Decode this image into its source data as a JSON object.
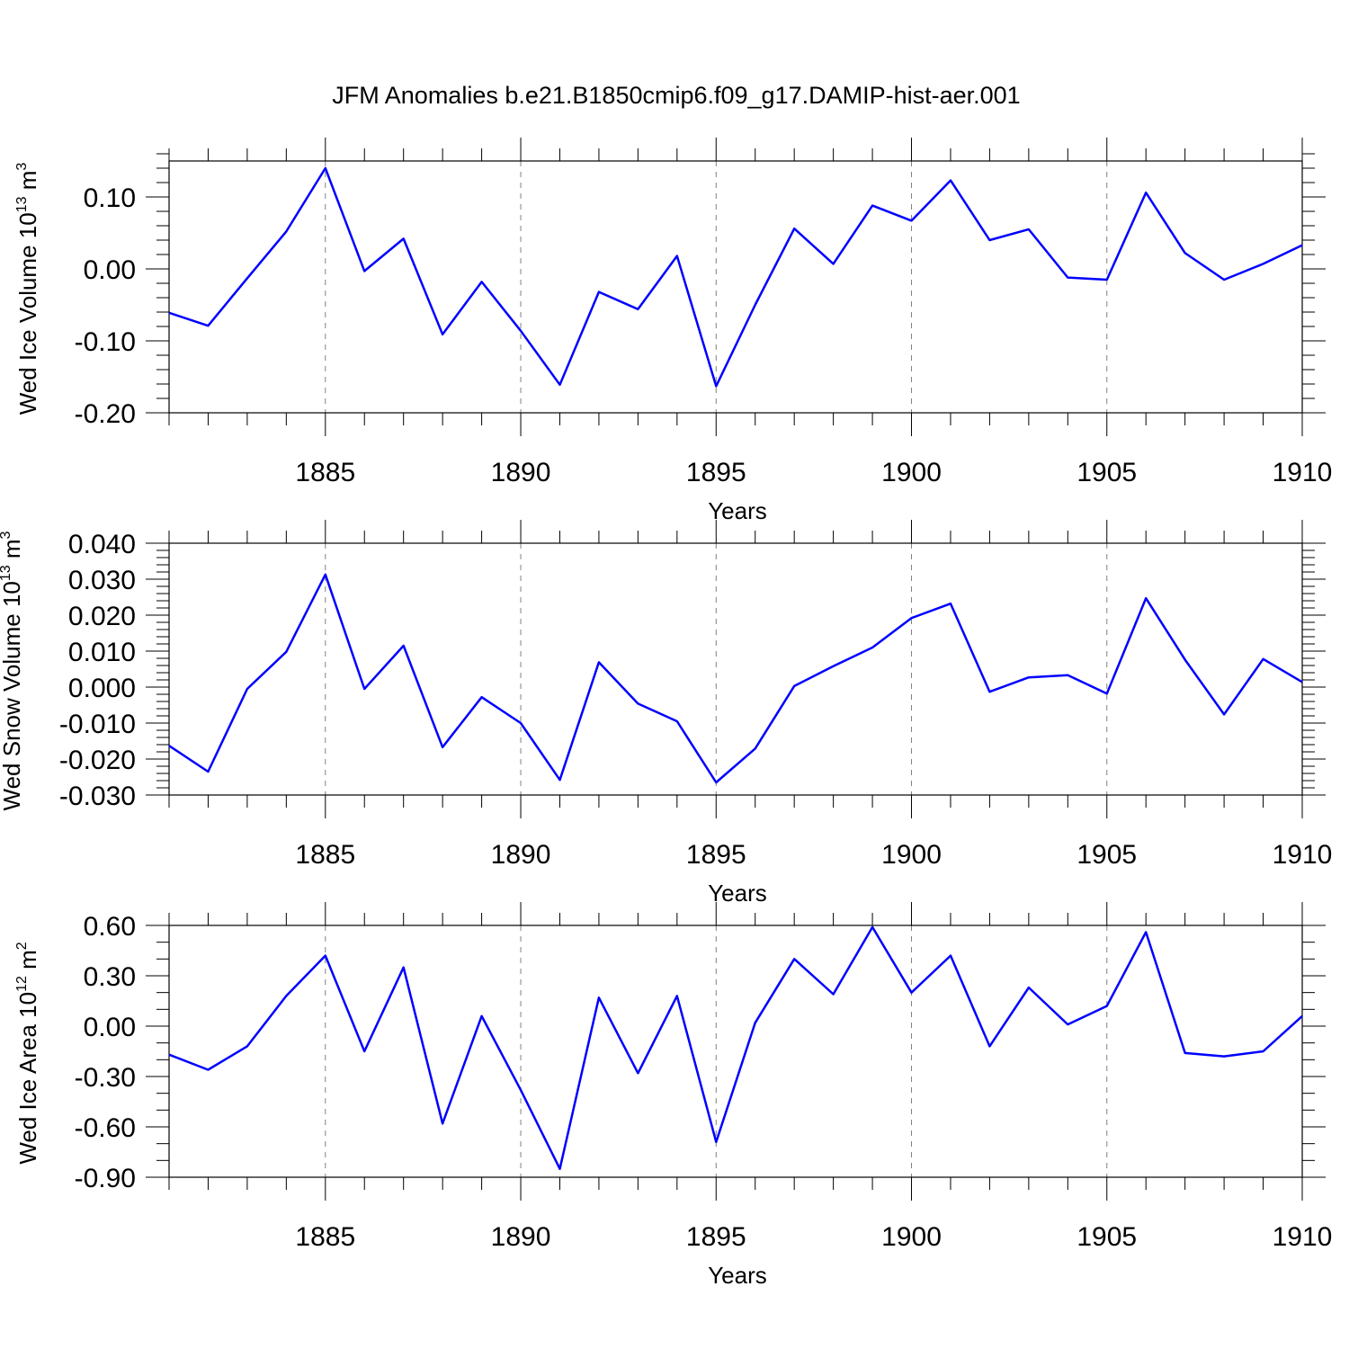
{
  "chart_data": [
    {
      "type": "line",
      "title": "JFM Anomalies b.e21.B1850cmip6.f09_g17.DAMIP-hist-aer.001",
      "xlabel": "Years",
      "ylabel_main": "Wed Ice Volume 10",
      "ylabel_exp": "13",
      "ylabel_unit": " m",
      "ylabel_unit_exp": "3",
      "xlim": [
        1881,
        1910
      ],
      "ylim": [
        -0.2,
        0.15
      ],
      "x_ticks": [
        1885,
        1890,
        1895,
        1900,
        1905,
        1910
      ],
      "x_tick_labels": [
        "1885",
        "1890",
        "1895",
        "1900",
        "1905",
        "1910"
      ],
      "y_ticks": [
        0.1,
        0.0,
        -0.1,
        -0.2
      ],
      "y_tick_labels": [
        "0.10",
        "0.00",
        "-0.10",
        "-0.20"
      ],
      "y_minor_step": 0.02,
      "grid": "x-dashed",
      "line_color": "#0000ff",
      "x": [
        1881,
        1882,
        1883,
        1884,
        1885,
        1886,
        1887,
        1888,
        1889,
        1890,
        1891,
        1892,
        1893,
        1894,
        1895,
        1896,
        1897,
        1898,
        1899,
        1900,
        1901,
        1902,
        1903,
        1904,
        1905,
        1906,
        1907,
        1908,
        1909,
        1910
      ],
      "values": [
        -0.061,
        -0.079,
        -0.013,
        0.052,
        0.14,
        -0.003,
        0.042,
        -0.091,
        -0.018,
        -0.086,
        -0.161,
        -0.032,
        -0.056,
        0.018,
        -0.163,
        -0.05,
        0.056,
        0.007,
        0.088,
        0.067,
        0.123,
        0.04,
        0.055,
        -0.012,
        -0.015,
        0.106,
        0.022,
        -0.015,
        0.007,
        0.033
      ]
    },
    {
      "type": "line",
      "title": "",
      "xlabel": "Years",
      "ylabel_main": "Wed Snow Volume 10",
      "ylabel_exp": "13",
      "ylabel_unit": " m",
      "ylabel_unit_exp": "3",
      "xlim": [
        1881,
        1910
      ],
      "ylim": [
        -0.03,
        0.04
      ],
      "x_ticks": [
        1885,
        1890,
        1895,
        1900,
        1905,
        1910
      ],
      "x_tick_labels": [
        "1885",
        "1890",
        "1895",
        "1900",
        "1905",
        "1910"
      ],
      "y_ticks": [
        0.04,
        0.03,
        0.02,
        0.01,
        0.0,
        -0.01,
        -0.02,
        -0.03
      ],
      "y_tick_labels": [
        "0.040",
        "0.030",
        "0.020",
        "0.010",
        "0.000",
        "-0.010",
        "-0.020",
        "-0.030"
      ],
      "y_minor_step": 0.002,
      "grid": "x-dashed",
      "line_color": "#0000ff",
      "x": [
        1881,
        1882,
        1883,
        1884,
        1885,
        1886,
        1887,
        1888,
        1889,
        1890,
        1891,
        1892,
        1893,
        1894,
        1895,
        1896,
        1897,
        1898,
        1899,
        1900,
        1901,
        1902,
        1903,
        1904,
        1905,
        1906,
        1907,
        1908,
        1909,
        1910
      ],
      "values": [
        -0.0163,
        -0.0235,
        -0.0005,
        0.0098,
        0.0313,
        -0.0005,
        0.0115,
        -0.0167,
        -0.0028,
        -0.01,
        -0.0258,
        0.0069,
        -0.0046,
        -0.0095,
        -0.0265,
        -0.0171,
        0.0003,
        0.0058,
        0.011,
        0.0192,
        0.0232,
        -0.0013,
        0.0027,
        0.0033,
        -0.0018,
        0.0247,
        0.0076,
        -0.0076,
        0.0078,
        0.0014
      ]
    },
    {
      "type": "line",
      "title": "",
      "xlabel": "Years",
      "ylabel_main": "Wed Ice Area 10",
      "ylabel_exp": "12",
      "ylabel_unit": " m",
      "ylabel_unit_exp": "2",
      "xlim": [
        1881,
        1910
      ],
      "ylim": [
        -0.9,
        0.6
      ],
      "x_ticks": [
        1885,
        1890,
        1895,
        1900,
        1905,
        1910
      ],
      "x_tick_labels": [
        "1885",
        "1890",
        "1895",
        "1900",
        "1905",
        "1910"
      ],
      "y_ticks": [
        0.6,
        0.3,
        0.0,
        -0.3,
        -0.6,
        -0.9
      ],
      "y_tick_labels": [
        "0.60",
        "0.30",
        "0.00",
        "-0.30",
        "-0.60",
        "-0.90"
      ],
      "y_minor_step": 0.1,
      "grid": "x-dashed",
      "line_color": "#0000ff",
      "x": [
        1881,
        1882,
        1883,
        1884,
        1885,
        1886,
        1887,
        1888,
        1889,
        1890,
        1891,
        1892,
        1893,
        1894,
        1895,
        1896,
        1897,
        1898,
        1899,
        1900,
        1901,
        1902,
        1903,
        1904,
        1905,
        1906,
        1907,
        1908,
        1909,
        1910
      ],
      "values": [
        -0.17,
        -0.26,
        -0.12,
        0.18,
        0.42,
        -0.15,
        0.35,
        -0.58,
        0.06,
        -0.38,
        -0.85,
        0.17,
        -0.28,
        0.18,
        -0.69,
        0.02,
        0.4,
        0.19,
        0.59,
        0.2,
        0.42,
        -0.12,
        0.23,
        0.01,
        0.12,
        0.56,
        -0.16,
        -0.18,
        -0.15,
        0.06
      ]
    }
  ]
}
